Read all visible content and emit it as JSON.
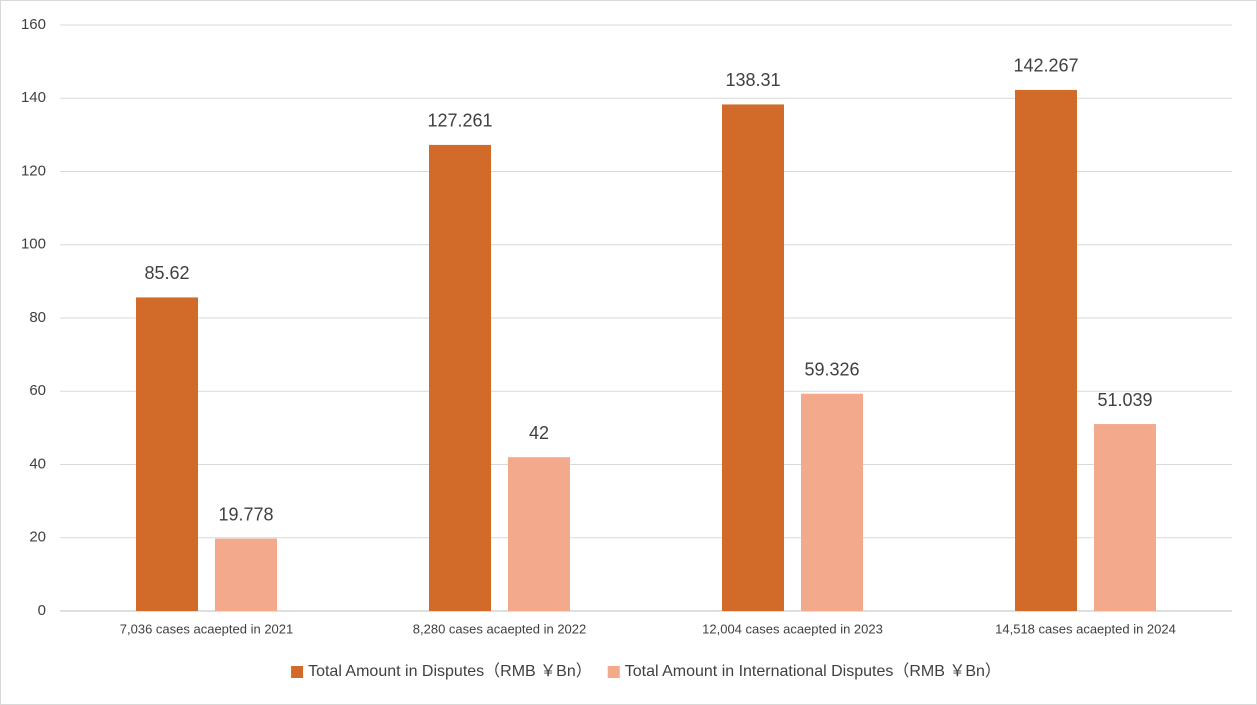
{
  "chart_data": {
    "type": "bar",
    "categories": [
      "7,036 cases acaepted in 2021",
      "8,280 cases acaepted in 2022",
      "12,004 cases acaepted in 2023",
      "14,518 cases acaepted in 2024"
    ],
    "series": [
      {
        "name": "Total Amount in Disputes（RMB ￥Bn）",
        "color": "#d26b29",
        "values": [
          85.62,
          127.261,
          138.31,
          142.267
        ]
      },
      {
        "name": "Total Amount in International Disputes（RMB ￥Bn）",
        "color": "#f2a98c",
        "values": [
          19.778,
          42,
          59.326,
          51.039
        ]
      }
    ],
    "ylim": [
      0,
      160
    ],
    "yticks": [
      0,
      20,
      40,
      60,
      80,
      100,
      120,
      140,
      160
    ],
    "grid": true,
    "legend": "bottom"
  }
}
